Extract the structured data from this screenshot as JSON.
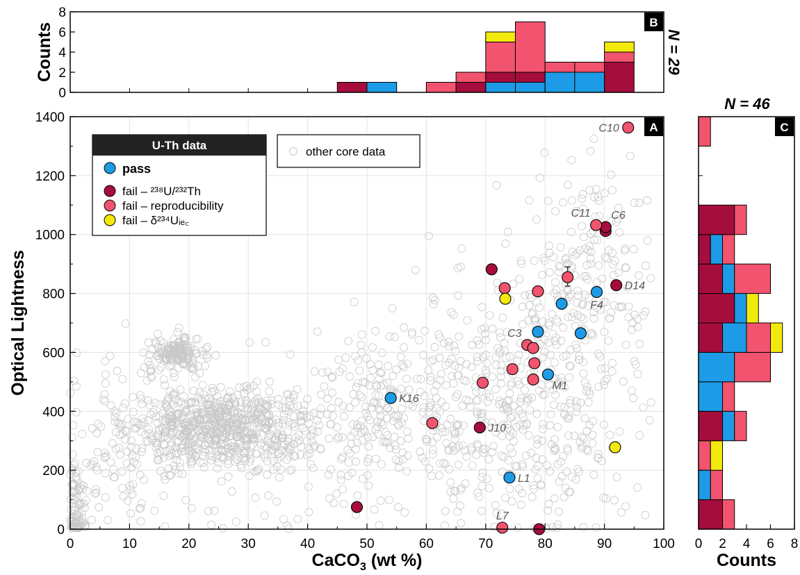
{
  "colors": {
    "pass": "#1e9be6",
    "fail_u_th": "#a50d3c",
    "fail_repro": "#f2536e",
    "fail_d234": "#f2ea0c",
    "other": "#c8c8c8",
    "grid": "#e3e3e3",
    "panel_label_bg": "#000000"
  },
  "panel_labels": {
    "a": "A",
    "b": "B",
    "c": "C"
  },
  "chart_data": [
    {
      "id": "A",
      "type": "scatter",
      "xlabel_main": "CaCO",
      "xlabel_sub": "3",
      "xlabel_tail": " (wt %)",
      "ylabel": "Optical Lightness",
      "xlim": [
        0,
        100
      ],
      "ylim": [
        0,
        1400
      ],
      "xticks": [
        0,
        10,
        20,
        30,
        40,
        50,
        60,
        70,
        80,
        90,
        100
      ],
      "yticks": [
        0,
        200,
        400,
        600,
        800,
        1000,
        1200,
        1400
      ],
      "grid": true,
      "legend_utth": {
        "title": "U-Th data",
        "items": [
          {
            "key": "pass",
            "label": "pass"
          },
          {
            "key": "fail_u_th",
            "label": "fail – ²³⁸U/²³²Th"
          },
          {
            "key": "fail_repro",
            "label": "fail – reproducibility"
          },
          {
            "key": "fail_d234",
            "label": "fail – δ²³⁴Uᵢₑ꜀"
          }
        ]
      },
      "legend_other": "other core data",
      "series": [
        {
          "key": "pass",
          "points": [
            [
              54,
              445
            ],
            [
              74,
              175
            ],
            [
              78.8,
              670
            ],
            [
              80.5,
              525
            ],
            [
              82.8,
              765
            ],
            [
              86,
              665
            ],
            [
              88.7,
              805
            ]
          ]
        },
        {
          "key": "fail_u_th",
          "points": [
            [
              48.3,
              75
            ],
            [
              69,
              345
            ],
            [
              71,
              882
            ],
            [
              79,
              0
            ],
            [
              90.2,
              1012
            ],
            [
              90.2,
              1025
            ],
            [
              92,
              828
            ]
          ]
        },
        {
          "key": "fail_repro",
          "points": [
            [
              61,
              360
            ],
            [
              69.5,
              497
            ],
            [
              72.8,
              5
            ],
            [
              73.2,
              818
            ],
            [
              74.5,
              543
            ],
            [
              77,
              625
            ],
            [
              78,
              615
            ],
            [
              78,
              508
            ],
            [
              78.2,
              563
            ],
            [
              78.8,
              807
            ],
            [
              83.8,
              855
            ],
            [
              88.6,
              1032
            ],
            [
              94,
              1363
            ]
          ]
        },
        {
          "key": "fail_d234",
          "points": [
            [
              73.3,
              782
            ],
            [
              91.8,
              278
            ]
          ]
        }
      ],
      "error_bar": {
        "x": 83.8,
        "y": 855,
        "low": 825,
        "high": 890
      },
      "annotations": [
        {
          "text": "C10",
          "x": 94,
          "y": 1363,
          "pos": "left"
        },
        {
          "text": "C11",
          "x": 88.6,
          "y": 1032,
          "pos": "upleft"
        },
        {
          "text": "C6",
          "x": 90.2,
          "y": 1025,
          "pos": "upright"
        },
        {
          "text": "D14",
          "x": 92,
          "y": 828,
          "pos": "right"
        },
        {
          "text": "F4",
          "x": 88.7,
          "y": 805,
          "pos": "below"
        },
        {
          "text": "C3",
          "x": 77,
          "y": 625,
          "pos": "upleft"
        },
        {
          "text": "M1",
          "x": 80.5,
          "y": 525,
          "pos": "belowright"
        },
        {
          "text": "K16",
          "x": 54,
          "y": 445,
          "pos": "right"
        },
        {
          "text": "J10",
          "x": 69,
          "y": 345,
          "pos": "right"
        },
        {
          "text": "L1",
          "x": 74,
          "y": 175,
          "pos": "right"
        },
        {
          "text": "L7",
          "x": 72.8,
          "y": 5,
          "pos": "above"
        }
      ]
    },
    {
      "id": "B",
      "type": "bar",
      "ylabel": "Counts",
      "xlim": [
        0,
        100
      ],
      "ylim": [
        0,
        8
      ],
      "yticks": [
        0,
        2,
        4,
        6,
        8
      ],
      "n_label": "N = 29",
      "stacking_order": [
        "pass",
        "fail_u_th",
        "fail_repro",
        "fail_d234"
      ],
      "bins": [
        {
          "range": [
            45,
            50
          ],
          "pass": 0,
          "fail_u_th": 1,
          "fail_repro": 0,
          "fail_d234": 0
        },
        {
          "range": [
            50,
            55
          ],
          "pass": 1,
          "fail_u_th": 0,
          "fail_repro": 0,
          "fail_d234": 0
        },
        {
          "range": [
            60,
            65
          ],
          "pass": 0,
          "fail_u_th": 0,
          "fail_repro": 1,
          "fail_d234": 0
        },
        {
          "range": [
            65,
            70
          ],
          "pass": 0,
          "fail_u_th": 1,
          "fail_repro": 1,
          "fail_d234": 0
        },
        {
          "range": [
            70,
            75
          ],
          "pass": 1,
          "fail_u_th": 1,
          "fail_repro": 3,
          "fail_d234": 1
        },
        {
          "range": [
            75,
            80
          ],
          "pass": 1,
          "fail_u_th": 1,
          "fail_repro": 5,
          "fail_d234": 0
        },
        {
          "range": [
            80,
            85
          ],
          "pass": 2,
          "fail_u_th": 0,
          "fail_repro": 1,
          "fail_d234": 0
        },
        {
          "range": [
            85,
            90
          ],
          "pass": 2,
          "fail_u_th": 0,
          "fail_repro": 1,
          "fail_d234": 0
        },
        {
          "range": [
            90,
            95
          ],
          "pass": 0,
          "fail_u_th": 3,
          "fail_repro": 1,
          "fail_d234": 1
        }
      ]
    },
    {
      "id": "C",
      "type": "bar",
      "orientation": "horizontal",
      "xlabel": "Counts",
      "xlim": [
        0,
        8
      ],
      "xticks": [
        0,
        2,
        4,
        6,
        8
      ],
      "ylim": [
        0,
        1400
      ],
      "n_label": "N = 46",
      "stacking_order": [
        "fail_u_th",
        "pass",
        "fail_repro",
        "fail_d234"
      ],
      "bins": [
        {
          "range": [
            0,
            100
          ],
          "pass": 0,
          "fail_u_th": 2,
          "fail_repro": 1,
          "fail_d234": 0
        },
        {
          "range": [
            100,
            200
          ],
          "pass": 1,
          "fail_u_th": 0,
          "fail_repro": 1,
          "fail_d234": 0
        },
        {
          "range": [
            200,
            300
          ],
          "pass": 0,
          "fail_u_th": 0,
          "fail_repro": 1,
          "fail_d234": 1
        },
        {
          "range": [
            300,
            400
          ],
          "pass": 1,
          "fail_u_th": 2,
          "fail_repro": 1,
          "fail_d234": 0
        },
        {
          "range": [
            400,
            500
          ],
          "pass": 2,
          "fail_u_th": 0,
          "fail_repro": 1,
          "fail_d234": 0
        },
        {
          "range": [
            500,
            600
          ],
          "pass": 3,
          "fail_u_th": 0,
          "fail_repro": 3,
          "fail_d234": 0
        },
        {
          "range": [
            600,
            700
          ],
          "pass": 2,
          "fail_u_th": 2,
          "fail_repro": 2,
          "fail_d234": 1
        },
        {
          "range": [
            700,
            800
          ],
          "pass": 1,
          "fail_u_th": 3,
          "fail_repro": 0,
          "fail_d234": 1
        },
        {
          "range": [
            800,
            900
          ],
          "pass": 1,
          "fail_u_th": 2,
          "fail_repro": 3,
          "fail_d234": 0
        },
        {
          "range": [
            900,
            1000
          ],
          "pass": 1,
          "fail_u_th": 1,
          "fail_repro": 1,
          "fail_d234": 0
        },
        {
          "range": [
            1000,
            1100
          ],
          "pass": 0,
          "fail_u_th": 3,
          "fail_repro": 1,
          "fail_d234": 0
        },
        {
          "range": [
            1300,
            1400
          ],
          "pass": 0,
          "fail_u_th": 0,
          "fail_repro": 1,
          "fail_d234": 0
        }
      ]
    }
  ]
}
